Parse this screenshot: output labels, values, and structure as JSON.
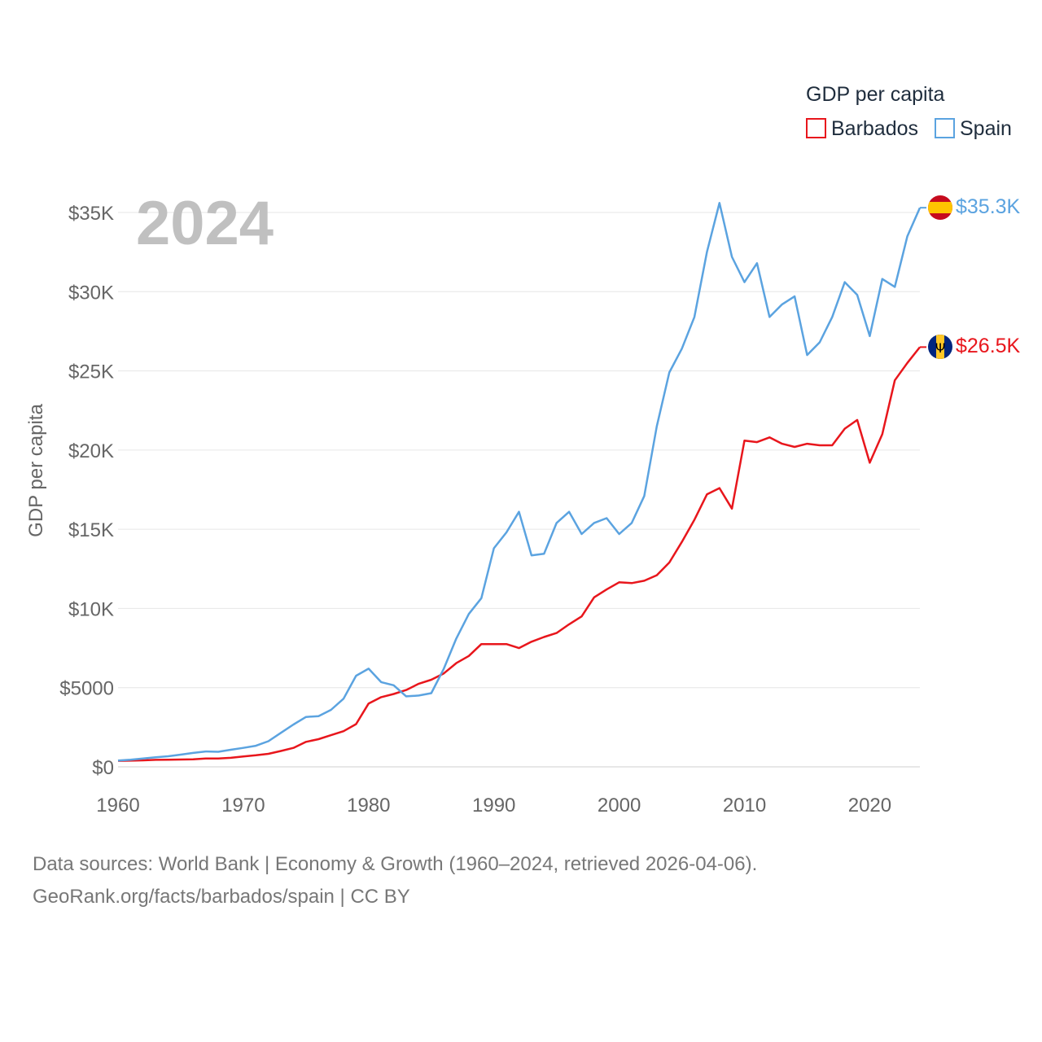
{
  "chart_data": {
    "type": "line",
    "year_label": "2024",
    "ylabel": "GDP per capita",
    "legend": {
      "title": "GDP per capita",
      "placement": "top-right"
    },
    "x": [
      1960,
      1961,
      1962,
      1963,
      1964,
      1965,
      1966,
      1967,
      1968,
      1969,
      1970,
      1971,
      1972,
      1973,
      1974,
      1975,
      1976,
      1977,
      1978,
      1979,
      1980,
      1981,
      1982,
      1983,
      1984,
      1985,
      1986,
      1987,
      1988,
      1989,
      1990,
      1991,
      1992,
      1993,
      1994,
      1995,
      1996,
      1997,
      1998,
      1999,
      2000,
      2001,
      2002,
      2003,
      2004,
      2005,
      2006,
      2007,
      2008,
      2009,
      2010,
      2011,
      2012,
      2013,
      2014,
      2015,
      2016,
      2017,
      2018,
      2019,
      2020,
      2021,
      2022,
      2023,
      2024
    ],
    "xlim": [
      1960,
      2024
    ],
    "xticks": [
      1960,
      1970,
      1980,
      1990,
      2000,
      2010,
      2020
    ],
    "ylim": [
      0,
      35000
    ],
    "yticks": [
      {
        "value": 0,
        "label": "$0"
      },
      {
        "value": 5000,
        "label": "$5000"
      },
      {
        "value": 10000,
        "label": "$10K"
      },
      {
        "value": 15000,
        "label": "$15K"
      },
      {
        "value": 20000,
        "label": "$20K"
      },
      {
        "value": 25000,
        "label": "$25K"
      },
      {
        "value": 30000,
        "label": "$30K"
      },
      {
        "value": 35000,
        "label": "$35K"
      }
    ],
    "grid": true,
    "series": [
      {
        "name": "Barbados",
        "color": "#e8161c",
        "end_label": "$26.5K",
        "flag": "barbados-flag-icon",
        "values": [
          380,
          390,
          410,
          440,
          450,
          460,
          480,
          530,
          530,
          570,
          660,
          730,
          820,
          1000,
          1200,
          1580,
          1750,
          2000,
          2250,
          2700,
          4000,
          4400,
          4600,
          4850,
          5250,
          5500,
          5900,
          6550,
          7000,
          7750,
          7750,
          7750,
          7500,
          7900,
          8200,
          8450,
          9000,
          9500,
          10700,
          11200,
          11650,
          11600,
          11750,
          12100,
          12900,
          14200,
          15600,
          17200,
          17600,
          16300,
          20600,
          20500,
          20800,
          20400,
          20200,
          20400,
          20300,
          20300,
          21350,
          21900,
          19200,
          21000,
          24400,
          25500,
          26500
        ]
      },
      {
        "name": "Spain",
        "color": "#5ba3e0",
        "end_label": "$35.3K",
        "flag": "spain-flag-icon",
        "values": [
          400,
          450,
          530,
          600,
          670,
          770,
          880,
          970,
          950,
          1080,
          1200,
          1330,
          1620,
          2150,
          2670,
          3150,
          3200,
          3600,
          4300,
          5750,
          6200,
          5350,
          5150,
          4450,
          4500,
          4650,
          6200,
          8100,
          9650,
          10650,
          13800,
          14800,
          16100,
          13350,
          13450,
          15400,
          16100,
          14700,
          15400,
          15700,
          14700,
          15400,
          17100,
          21500,
          24900,
          26400,
          28400,
          32500,
          35600,
          32200,
          30600,
          31800,
          28400,
          29200,
          29700,
          26000,
          26800,
          28400,
          30600,
          29800,
          27200,
          30800,
          30300,
          33500,
          35300
        ]
      }
    ]
  },
  "footer": {
    "sources": "Data sources: World Bank | Economy & Growth (1960–2024, retrieved 2026-04-06).",
    "credit": "GeoRank.org/facts/barbados/spain | CC BY"
  }
}
